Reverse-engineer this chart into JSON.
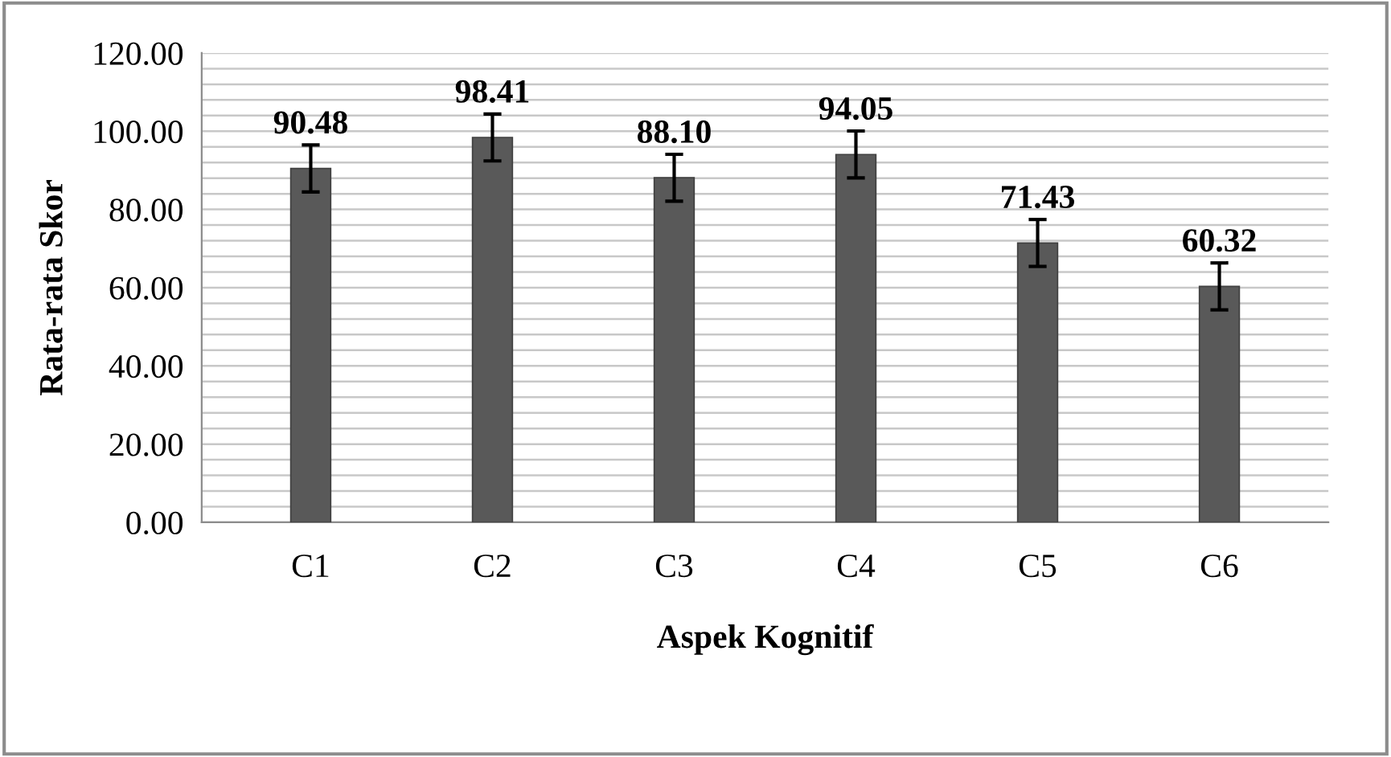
{
  "chart_data": {
    "type": "bar",
    "xlabel": "Aspek Kognitif",
    "ylabel": "Rata-rata Skor",
    "categories": [
      "C1",
      "C2",
      "C3",
      "C4",
      "C5",
      "C6"
    ],
    "values": [
      90.48,
      98.41,
      88.1,
      94.05,
      71.43,
      60.32
    ],
    "value_labels": [
      "90.48",
      "98.41",
      "88.10",
      "94.05",
      "71.43",
      "60.32"
    ],
    "errors": [
      6,
      6,
      6,
      6,
      6,
      6
    ],
    "color": "#595959",
    "ylim": [
      0,
      120
    ],
    "yticks": [
      {
        "value": 0,
        "label": "0.00"
      },
      {
        "value": 4,
        "label": null
      },
      {
        "value": 8,
        "label": null
      },
      {
        "value": 12,
        "label": null
      },
      {
        "value": 16,
        "label": null
      },
      {
        "value": 20,
        "label": "20.00"
      },
      {
        "value": 24,
        "label": null
      },
      {
        "value": 28,
        "label": null
      },
      {
        "value": 32,
        "label": null
      },
      {
        "value": 36,
        "label": null
      },
      {
        "value": 40,
        "label": "40.00"
      },
      {
        "value": 44,
        "label": null
      },
      {
        "value": 48,
        "label": null
      },
      {
        "value": 52,
        "label": null
      },
      {
        "value": 56,
        "label": null
      },
      {
        "value": 60,
        "label": "60.00"
      },
      {
        "value": 64,
        "label": null
      },
      {
        "value": 68,
        "label": null
      },
      {
        "value": 72,
        "label": null
      },
      {
        "value": 76,
        "label": null
      },
      {
        "value": 80,
        "label": "80.00"
      },
      {
        "value": 84,
        "label": null
      },
      {
        "value": 88,
        "label": null
      },
      {
        "value": 92,
        "label": null
      },
      {
        "value": 96,
        "label": null
      },
      {
        "value": 100,
        "label": "100.00"
      },
      {
        "value": 104,
        "label": null
      },
      {
        "value": 108,
        "label": null
      },
      {
        "value": 112,
        "label": null
      },
      {
        "value": 116,
        "label": null
      },
      {
        "value": 120,
        "label": "120.00"
      }
    ],
    "grid": "y"
  }
}
